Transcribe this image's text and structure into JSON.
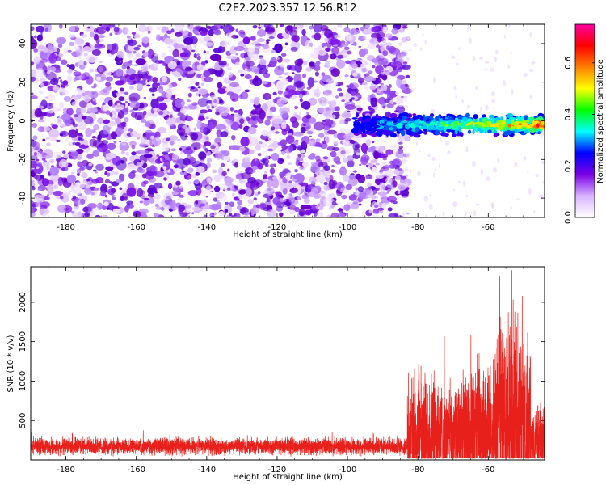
{
  "title": "C2E2.2023.357.12.56.R12",
  "colors": {
    "snr_line": "#e8201c",
    "frame": "#000000",
    "background": "#ffffff"
  },
  "chart_data": [
    {
      "type": "heatmap",
      "name": "spectrogram",
      "xlabel": "Height of straight line (km)",
      "ylabel": "Frequency (Hz)",
      "xlim": [
        -190,
        -44
      ],
      "ylim": [
        -50,
        50
      ],
      "x_ticks": [
        -180,
        -160,
        -140,
        -120,
        -100,
        -80,
        -60
      ],
      "x_tick_labels": [
        "-180",
        "-160",
        "-140",
        "-120",
        "-100",
        "-80",
        "-60"
      ],
      "y_ticks": [
        -40,
        -20,
        0,
        20,
        40
      ],
      "y_tick_labels": [
        "-40",
        "-20",
        "0",
        "20",
        "40"
      ],
      "noise_region_km": [
        -190,
        -85
      ],
      "signal_band": {
        "x_start": -98,
        "x_end": -44,
        "freq_center": -2,
        "freq_halfwidth": 5
      },
      "colorbar": {
        "label": "Normalized spectral amplitude",
        "range": [
          0.0,
          0.75
        ],
        "ticks": [
          0.0,
          0.2,
          0.4,
          0.6
        ],
        "tick_labels": [
          "0.0",
          "0.2",
          "0.4",
          "0.6"
        ],
        "colormap": [
          "#ffffff",
          "#d9b3ff",
          "#7a00e6",
          "#0000ff",
          "#00ffff",
          "#00ff00",
          "#ffff00",
          "#ff8000",
          "#ff0000",
          "#ff00a0"
        ]
      }
    },
    {
      "type": "line",
      "name": "snr",
      "xlabel": "Height of straight line (km)",
      "ylabel": "SNR (10 * v/v)",
      "xlim": [
        -190,
        -44
      ],
      "ylim": [
        0,
        2450
      ],
      "x_ticks": [
        -180,
        -160,
        -140,
        -120,
        -100,
        -80,
        -60
      ],
      "x_tick_labels": [
        "-180",
        "-160",
        "-140",
        "-120",
        "-100",
        "-80",
        "-60"
      ],
      "y_ticks": [
        500,
        1000,
        1500,
        2000
      ],
      "y_tick_labels": [
        "500",
        "1000",
        "1500",
        "2000"
      ],
      "segments": [
        {
          "x_start": -190,
          "x_end": -83,
          "baseline": 170,
          "amplitude": 130
        },
        {
          "x_start": -83,
          "x_end": -75,
          "baseline": 300,
          "amplitude": 1000
        },
        {
          "x_start": -75,
          "x_end": -65,
          "baseline": 300,
          "amplitude": 800
        },
        {
          "x_start": -65,
          "x_end": -58,
          "baseline": 300,
          "amplitude": 1100
        },
        {
          "x_start": -58,
          "x_end": -48,
          "baseline": 400,
          "amplitude": 1900
        },
        {
          "x_start": -48,
          "x_end": -44,
          "baseline": 200,
          "amplitude": 600
        }
      ],
      "peak_value": 2450
    }
  ]
}
